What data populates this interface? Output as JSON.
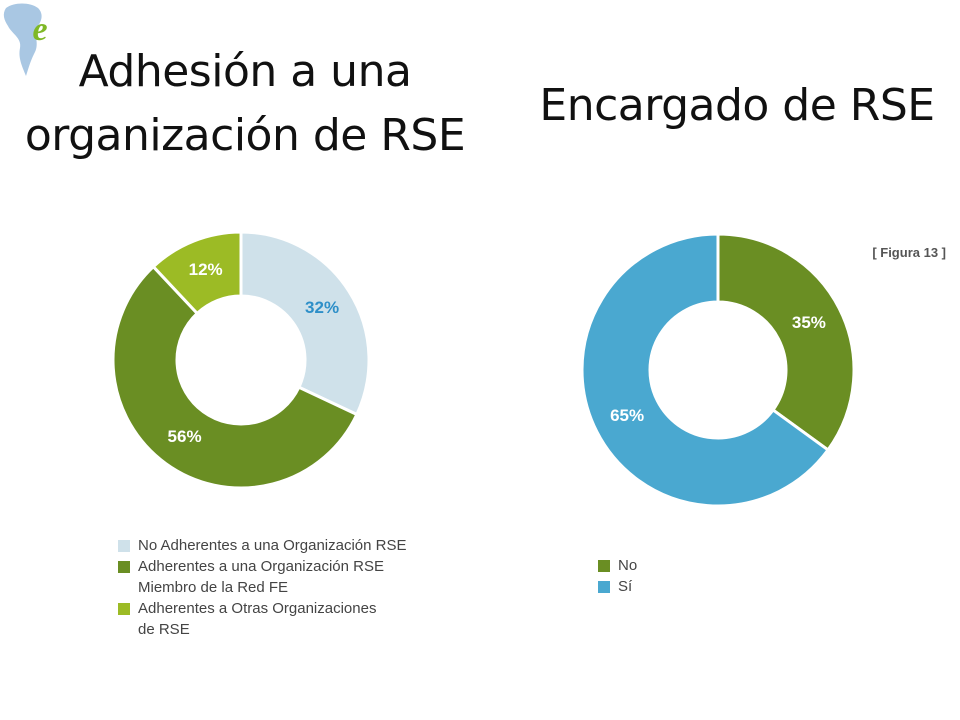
{
  "slide": {
    "title_left": "Adhesión a una\norganización de RSE",
    "title_right": "Encargado de RSE",
    "logo_letter": "e"
  },
  "chart_data": [
    {
      "type": "pie",
      "variant": "donut",
      "title": "",
      "categories": [
        "No Adherentes a una Organización RSE",
        "Adherentes a una Organización RSE\nMiembro de la Red FE",
        "Adherentes a Otras Organizaciones\nde RSE"
      ],
      "values": [
        32,
        56,
        12
      ],
      "labels": [
        "32%",
        "56%",
        "12%"
      ],
      "colors": [
        "#cfe1ea",
        "#6a8e23",
        "#9cbb25"
      ],
      "label_colors": [
        "#2e8fc8",
        "#ffffff",
        "#ffffff"
      ],
      "legend_position": "bottom"
    },
    {
      "type": "pie",
      "variant": "donut",
      "title": "",
      "figure_tag": "[ Figura 13 ]",
      "categories": [
        "No",
        "Sí"
      ],
      "values": [
        35,
        65
      ],
      "labels": [
        "35%",
        "65%"
      ],
      "colors": [
        "#6a8e23",
        "#4aa8d0"
      ],
      "label_colors": [
        "#ffffff",
        "#ffffff"
      ],
      "legend_position": "bottom"
    }
  ]
}
